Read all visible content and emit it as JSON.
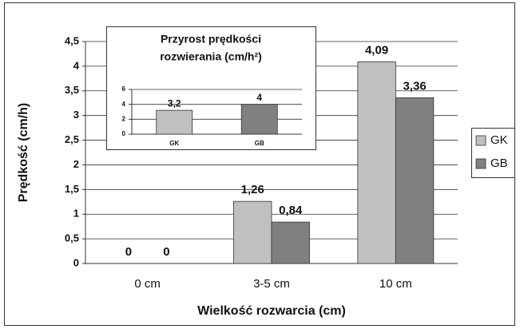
{
  "chart_data": [
    {
      "type": "bar",
      "categories": [
        "0 cm",
        "3-5 cm",
        "10 cm"
      ],
      "series": [
        {
          "name": "GK",
          "color": "#c0c0c0",
          "values": [
            0,
            1.26,
            4.09
          ],
          "value_labels": [
            "0",
            "1,26",
            "4,09"
          ]
        },
        {
          "name": "GB",
          "color": "#808080",
          "values": [
            0,
            0.84,
            3.36
          ],
          "value_labels": [
            "0",
            "0,84",
            "3,36"
          ]
        }
      ],
      "xlabel": "Wielkość rozwarcia (cm)",
      "ylabel": "Prędkość (cm/h)",
      "ylim": [
        0,
        4.5
      ],
      "yticks": [
        0,
        {
          "value": 0.5,
          "label": "0,5"
        },
        1,
        {
          "value": 1.5,
          "label": "1,5"
        },
        2,
        {
          "value": 2.5,
          "label": "2,5"
        },
        3,
        {
          "value": 3.5,
          "label": "3,5"
        },
        4,
        {
          "value": 4.5,
          "label": "4,5"
        }
      ],
      "grid": true,
      "legend": "right"
    },
    {
      "type": "bar",
      "title": [
        "Przyrost prędkości",
        "rozwierania (cm/h²)"
      ],
      "categories": [
        "GK",
        "GB"
      ],
      "values": [
        3.2,
        4
      ],
      "value_labels": [
        "3,2",
        "4"
      ],
      "colors": [
        "#c0c0c0",
        "#808080"
      ],
      "ylim": [
        0,
        6
      ],
      "yticks": [
        0,
        2,
        4,
        6
      ],
      "grid": true
    }
  ]
}
